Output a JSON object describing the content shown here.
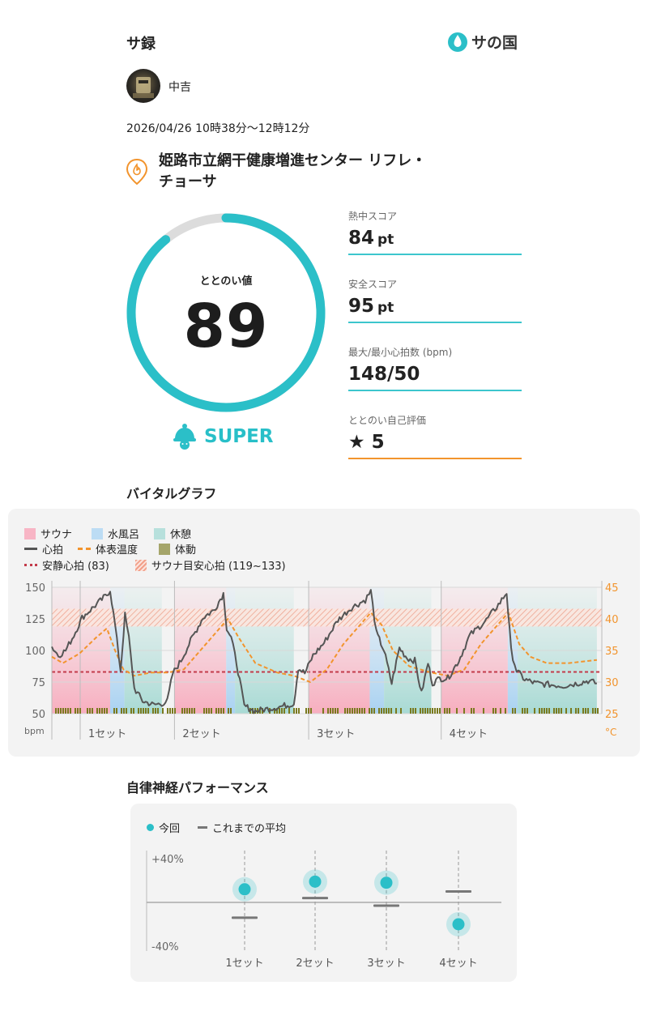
{
  "header": {
    "title": "サ録",
    "logo_text": "サの国"
  },
  "user": {
    "name": "中吉"
  },
  "session": {
    "datetime": "2026/04/26 10時38分〜12時12分",
    "facility_line1": "姫路市立網干健康増進センター リフレ・",
    "facility_line2": "チョーサ"
  },
  "totonoi": {
    "label": "ととのい値",
    "value": "89",
    "gauge_fraction": 0.89,
    "rank": "SUPER"
  },
  "metrics": [
    {
      "label": "熱中スコア",
      "value": "84",
      "unit": "pt"
    },
    {
      "label": "安全スコア",
      "value": "95",
      "unit": "pt"
    },
    {
      "label": "最大/最小心拍数 (bpm)",
      "value": "148/50",
      "unit": ""
    },
    {
      "label": "ととのい自己評価",
      "value": "★ 5",
      "unit": ""
    }
  ],
  "vital": {
    "title": "バイタルグラフ",
    "legend": {
      "sauna": "サウナ",
      "cold_bath": "水風呂",
      "rest": "休憩",
      "heart_rate": "心拍",
      "skin_temp": "体表温度",
      "movement": "体動",
      "resting_hr": "安静心拍 (83)",
      "target_hr": "サウナ目安心拍 (119~133)"
    },
    "y_left_ticks": [
      "150",
      "125",
      "100",
      "75",
      "50"
    ],
    "y_left_unit": "bpm",
    "y_right_ticks": [
      "45",
      "40",
      "35",
      "30",
      "25"
    ],
    "y_right_unit": "°C",
    "set_labels": [
      "1セット",
      "2セット",
      "3セット",
      "4セット"
    ]
  },
  "chart_data": [
    {
      "type": "line",
      "title": "バイタルグラフ",
      "y_left_range": [
        50,
        150
      ],
      "y_right_range": [
        25,
        45
      ],
      "resting_hr": 83,
      "target_hr_range": [
        119,
        133
      ],
      "sets": [
        {
          "label": "1セット",
          "sauna": [
            0.0,
            0.106
          ],
          "cold_bath": [
            0.106,
            0.132
          ],
          "rest": [
            0.132,
            0.2
          ]
        },
        {
          "label": "2セット",
          "sauna": [
            0.223,
            0.317
          ],
          "cold_bath": [
            0.317,
            0.333
          ],
          "rest": [
            0.333,
            0.44
          ]
        },
        {
          "label": "3セット",
          "sauna": [
            0.467,
            0.578
          ],
          "cold_bath": [
            0.578,
            0.604
          ],
          "rest": [
            0.604,
            0.69
          ]
        },
        {
          "label": "4セット",
          "sauna": [
            0.708,
            0.829
          ],
          "cold_bath": [
            0.829,
            0.847
          ],
          "rest": [
            0.847,
            0.991
          ]
        }
      ],
      "series": [
        {
          "name": "心拍",
          "x": [
            0.0,
            0.012,
            0.025,
            0.04,
            0.055,
            0.07,
            0.085,
            0.1,
            0.106,
            0.115,
            0.125,
            0.133,
            0.14,
            0.15,
            0.165,
            0.185,
            0.2,
            0.21,
            0.22,
            0.235,
            0.255,
            0.275,
            0.295,
            0.312,
            0.318,
            0.326,
            0.336,
            0.35,
            0.37,
            0.395,
            0.42,
            0.44,
            0.448,
            0.46,
            0.475,
            0.495,
            0.52,
            0.545,
            0.57,
            0.58,
            0.59,
            0.604,
            0.618,
            0.632,
            0.646,
            0.66,
            0.672,
            0.684,
            0.692,
            0.705,
            0.72,
            0.74,
            0.76,
            0.79,
            0.815,
            0.827,
            0.835,
            0.845,
            0.86,
            0.88,
            0.905,
            0.93,
            0.955,
            0.975,
            0.991
          ],
          "values": [
            103,
            96,
            100,
            112,
            126,
            132,
            138,
            144,
            148,
            120,
            84,
            128,
            110,
            70,
            60,
            57,
            58,
            60,
            82,
            92,
            110,
            126,
            132,
            145,
            118,
            110,
            90,
            56,
            52,
            54,
            56,
            58,
            86,
            82,
            96,
            106,
            124,
            134,
            140,
            147,
            114,
            100,
            74,
            102,
            94,
            92,
            66,
            90,
            74,
            78,
            78,
            92,
            112,
            124,
            138,
            146,
            100,
            84,
            77,
            74,
            73,
            72,
            74,
            76,
            74
          ]
        },
        {
          "name": "体表温度",
          "x": [
            0.0,
            0.02,
            0.05,
            0.08,
            0.1,
            0.115,
            0.13,
            0.15,
            0.18,
            0.21,
            0.24,
            0.27,
            0.3,
            0.32,
            0.34,
            0.37,
            0.41,
            0.44,
            0.47,
            0.5,
            0.53,
            0.56,
            0.58,
            0.6,
            0.62,
            0.65,
            0.69,
            0.72,
            0.75,
            0.78,
            0.81,
            0.83,
            0.85,
            0.87,
            0.9,
            0.94,
            0.991
          ],
          "values": [
            34,
            33,
            34.5,
            37,
            38.5,
            35,
            32,
            31,
            31.5,
            31.5,
            32,
            35,
            38,
            40,
            37,
            33,
            31.5,
            31,
            30,
            32,
            36,
            39,
            41,
            39,
            35,
            32.5,
            31.5,
            31,
            32,
            36,
            39,
            41,
            36,
            34,
            33,
            33,
            33.5
          ]
        }
      ]
    },
    {
      "type": "scatter",
      "title": "自律神経パフォーマンス",
      "y_range": [
        -40,
        40
      ],
      "ylabel_ticks": [
        "+40%",
        "-40%"
      ],
      "categories": [
        "1セット",
        "2セット",
        "3セット",
        "4セット"
      ],
      "series": [
        {
          "name": "今回",
          "values": [
            12,
            19,
            18,
            -20
          ]
        },
        {
          "name": "これまでの平均",
          "values": [
            -14,
            4,
            -3,
            10
          ]
        }
      ]
    }
  ],
  "ans": {
    "title": "自律神経パフォーマンス",
    "legend_current": "今回",
    "legend_avg": "これまでの平均",
    "y_top": "+40%",
    "y_bottom": "-40%",
    "labels": [
      "1セット",
      "2セット",
      "3セット",
      "4セット"
    ]
  },
  "colors": {
    "teal": "#2bbfc8",
    "orange": "#f2942d",
    "sauna": "#f8c2cf",
    "cold": "#bcdcf4",
    "rest": "#bfe3df",
    "movement": "#7a7a1f",
    "resting": "#c33b4a"
  }
}
